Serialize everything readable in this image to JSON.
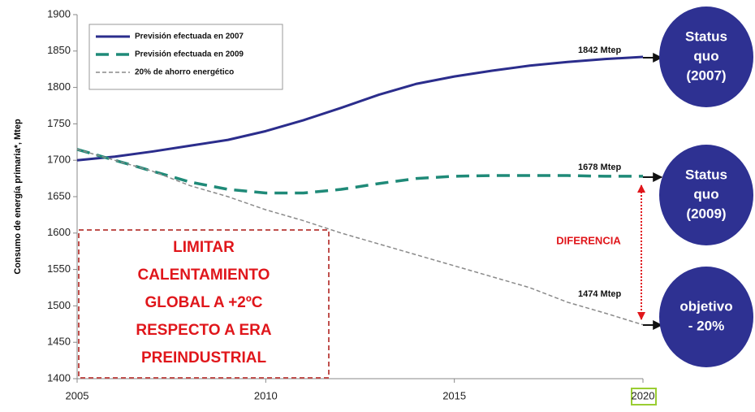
{
  "chart_data": {
    "type": "line",
    "ylabel": "Consumo de energía primaria*, Mtep",
    "x": [
      2005,
      2006,
      2007,
      2008,
      2009,
      2010,
      2011,
      2012,
      2013,
      2014,
      2015,
      2016,
      2017,
      2018,
      2019,
      2020
    ],
    "xlim": [
      2005,
      2020
    ],
    "xticks": [
      2005,
      2010,
      2015,
      2020
    ],
    "ylim": [
      1400,
      1900
    ],
    "yticks": [
      1400,
      1450,
      1500,
      1550,
      1600,
      1650,
      1700,
      1750,
      1800,
      1850,
      1900
    ],
    "series": [
      {
        "name": "Previsión efectuada en 2007",
        "color": "#2b2d8c",
        "values": [
          1700,
          1705,
          1712,
          1720,
          1728,
          1740,
          1755,
          1772,
          1790,
          1805,
          1815,
          1823,
          1830,
          1835,
          1839,
          1842
        ]
      },
      {
        "name": "Previsión efectuada en 2009",
        "color": "#1f8a78",
        "values": [
          1715,
          1700,
          1685,
          1670,
          1660,
          1655,
          1655,
          1660,
          1668,
          1675,
          1678,
          1679,
          1679,
          1679,
          1678,
          1678
        ]
      },
      {
        "name": "20% de ahorro energético",
        "color": "#8a8a8a",
        "values": [
          1715,
          1700,
          1685,
          1665,
          1650,
          1632,
          1617,
          1600,
          1585,
          1570,
          1555,
          1540,
          1525,
          1505,
          1490,
          1474
        ]
      }
    ],
    "annotations": {
      "end_2007": "1842 Mtep",
      "end_2009": "1678 Mtep",
      "end_target": "1474 Mtep",
      "difference": "DIFERENCIA",
      "box": [
        "LIMITAR",
        "CALENTAMIENTO",
        "GLOBAL A +2ºC",
        "RESPECTO A ERA",
        "PREINDUSTRIAL"
      ],
      "bubble_2007": [
        "Status",
        "quo",
        "(2007)"
      ],
      "bubble_2009": [
        "Status",
        "quo",
        "(2009)"
      ],
      "bubble_target": [
        "objetivo",
        "- 20%"
      ]
    }
  }
}
